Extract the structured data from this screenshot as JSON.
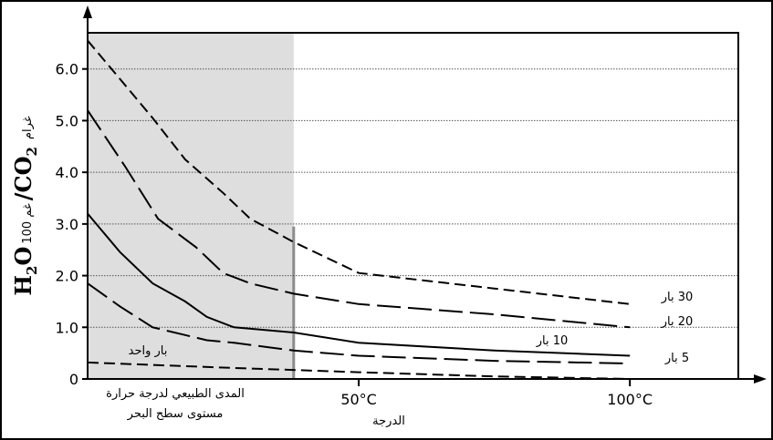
{
  "chart_data": {
    "type": "line",
    "y_label": {
      "h": "H",
      "sub2a": "2",
      "o": "O",
      "unit": "100 غم",
      "slash_co": "/CO",
      "sub2b": "2",
      "gram": "غرام"
    },
    "ylim": [
      0,
      6.7
    ],
    "xlim": [
      0,
      120
    ],
    "y_ticks": [
      {
        "value": 0,
        "label": "0"
      },
      {
        "value": 1,
        "label": "1.0"
      },
      {
        "value": 2,
        "label": "2.0"
      },
      {
        "value": 3,
        "label": "3.0"
      },
      {
        "value": 4,
        "label": "4.0"
      },
      {
        "value": 5,
        "label": "5.0"
      },
      {
        "value": 6,
        "label": "6.0"
      }
    ],
    "x_ticks": [
      {
        "value": 50,
        "label": "50°C"
      },
      {
        "value": 100,
        "label": "100°C"
      }
    ],
    "x_axis_title": "الدرجة",
    "range_label_line1": "المدى الطبيعي لدرجة حرارة",
    "range_label_line2": "مستوى سطح البحر",
    "natural_range_end": 38,
    "grid_y": true,
    "series": [
      {
        "name": "30 بار",
        "style": "dash-short",
        "x": [
          0,
          6,
          12,
          18,
          25,
          30,
          38,
          50,
          75,
          100
        ],
        "y": [
          6.55,
          5.8,
          5.05,
          4.25,
          3.6,
          3.1,
          2.65,
          2.05,
          1.75,
          1.45
        ]
      },
      {
        "name": "20 بار",
        "style": "dash-long",
        "x": [
          0,
          7,
          13,
          20,
          25,
          30,
          38,
          50,
          75,
          100
        ],
        "y": [
          5.2,
          4.1,
          3.1,
          2.55,
          2.05,
          1.85,
          1.65,
          1.45,
          1.25,
          1.0
        ]
      },
      {
        "name": "10 بار",
        "style": "solid",
        "x": [
          0,
          6,
          12,
          18,
          22,
          27,
          38,
          50,
          75,
          100
        ],
        "y": [
          3.2,
          2.45,
          1.85,
          1.5,
          1.2,
          1.0,
          0.9,
          0.7,
          0.55,
          0.45
        ]
      },
      {
        "name": "5 بار",
        "style": "dash-long",
        "x": [
          0,
          6,
          12,
          18,
          22,
          27,
          38,
          50,
          75,
          100
        ],
        "y": [
          1.85,
          1.4,
          1.0,
          0.85,
          0.75,
          0.7,
          0.55,
          0.45,
          0.35,
          0.3
        ]
      },
      {
        "name": "بار واحد",
        "style": "dash-short",
        "x": [
          0,
          25,
          50,
          75,
          100
        ],
        "y": [
          0.32,
          0.22,
          0.13,
          0.05,
          0.0
        ]
      }
    ]
  }
}
